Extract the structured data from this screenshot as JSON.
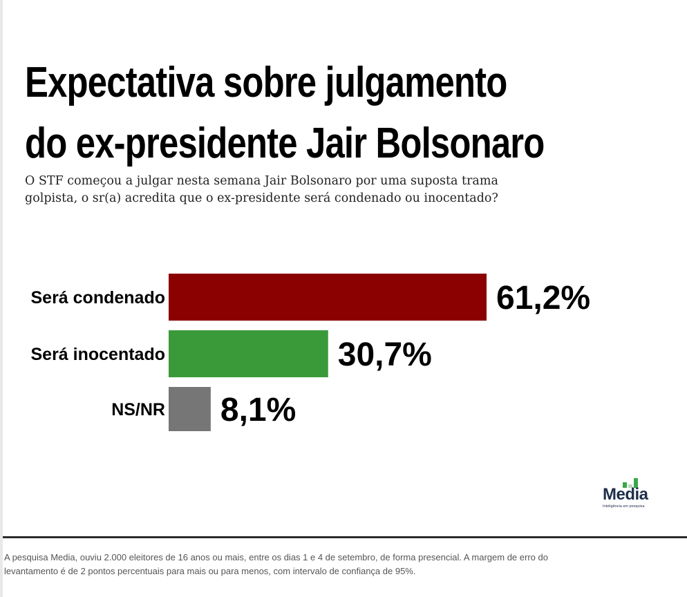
{
  "title": {
    "line1": "Expectativa sobre julgamento",
    "line2": "do ex-presidente Jair Bolsonaro"
  },
  "subtitle": {
    "line1": "O STF começou a julgar nesta semana  Jair Bolsonaro por uma suposta trama",
    "line2": "golpista, o sr(a) acredita que o ex-presidente será condenado  ou inocentado?"
  },
  "chart_data": {
    "type": "bar",
    "orientation": "horizontal",
    "categories": [
      "Será condenado",
      "Será inocentado",
      "NS/NR"
    ],
    "values": [
      61.2,
      30.7,
      8.1
    ],
    "value_labels": [
      "61,2%",
      "30,7%",
      "8,1%"
    ],
    "colors": [
      "#8b0000",
      "#3a9a3a",
      "#767676"
    ],
    "unit": "%",
    "xlim": [
      0,
      61.2
    ],
    "grid": false,
    "legend": "none"
  },
  "logo": {
    "name": "Media",
    "tagline": "Inteligência em pesquisa",
    "colors": [
      "#3aa84a",
      "#1f2f4a"
    ]
  },
  "footnote": {
    "line1": "A pesquisa Media, ouviu 2.000 eleitores de 16 anos ou mais, entre os dias 1 e 4 de setembro, de forma presencial. A margem de erro do",
    "line2": "levantamento é de 2 pontos percentuais para mais ou para menos, com intervalo de confiança de 95%."
  }
}
